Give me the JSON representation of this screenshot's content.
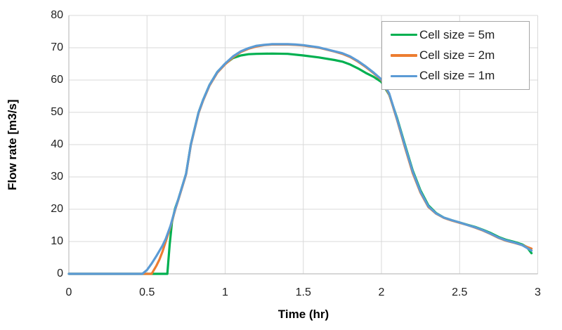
{
  "chart_data": {
    "type": "line",
    "title": "",
    "xlabel": "Time (hr)",
    "ylabel": "Flow rate [m3/s]",
    "xlim": [
      0,
      3
    ],
    "ylim": [
      0,
      80
    ],
    "x_ticks": [
      0,
      0.5,
      1,
      1.5,
      2,
      2.5,
      3
    ],
    "x_tick_labels": [
      "0",
      "0.5",
      "1",
      "1.5",
      "2",
      "2.5",
      "3"
    ],
    "y_ticks": [
      0,
      10,
      20,
      30,
      40,
      50,
      60,
      70,
      80
    ],
    "y_tick_labels": [
      "0",
      "10",
      "20",
      "30",
      "40",
      "50",
      "60",
      "70",
      "80"
    ],
    "grid": true,
    "legend_position": "top-right-inside",
    "colors": {
      "gridline": "#d9d9d9",
      "axis": "#bfbfbf",
      "tick_text": "#1f1f1f",
      "background": "#ffffff",
      "legend_border": "#a6a6a6"
    },
    "series": [
      {
        "name": "Cell size = 5m",
        "color": "#00b050",
        "points": [
          [
            0,
            0
          ],
          [
            0.2,
            0
          ],
          [
            0.4,
            0
          ],
          [
            0.5,
            0
          ],
          [
            0.56,
            0
          ],
          [
            0.6,
            0
          ],
          [
            0.63,
            0
          ],
          [
            0.645,
            9
          ],
          [
            0.66,
            16
          ],
          [
            0.68,
            20.3
          ],
          [
            0.7,
            23
          ],
          [
            0.75,
            31
          ],
          [
            0.78,
            40
          ],
          [
            0.8,
            44
          ],
          [
            0.83,
            50
          ],
          [
            0.86,
            54
          ],
          [
            0.9,
            58.5
          ],
          [
            0.95,
            62.5
          ],
          [
            1.0,
            65
          ],
          [
            1.05,
            66.8
          ],
          [
            1.1,
            67.6
          ],
          [
            1.15,
            68
          ],
          [
            1.2,
            68.1
          ],
          [
            1.3,
            68.2
          ],
          [
            1.4,
            68.1
          ],
          [
            1.5,
            67.6
          ],
          [
            1.6,
            67
          ],
          [
            1.7,
            66.2
          ],
          [
            1.75,
            65.7
          ],
          [
            1.8,
            64.8
          ],
          [
            1.85,
            63.6
          ],
          [
            1.9,
            62.2
          ],
          [
            1.95,
            61
          ],
          [
            2.0,
            59.4
          ],
          [
            2.05,
            55.4
          ],
          [
            2.1,
            48.2
          ],
          [
            2.15,
            40
          ],
          [
            2.2,
            32
          ],
          [
            2.25,
            25.8
          ],
          [
            2.3,
            21.2
          ],
          [
            2.35,
            18.8
          ],
          [
            2.4,
            17.4
          ],
          [
            2.45,
            16.6
          ],
          [
            2.5,
            15.9
          ],
          [
            2.55,
            15.2
          ],
          [
            2.6,
            14.5
          ],
          [
            2.65,
            13.6
          ],
          [
            2.7,
            12.6
          ],
          [
            2.75,
            11.4
          ],
          [
            2.8,
            10.5
          ],
          [
            2.85,
            9.9
          ],
          [
            2.9,
            9.1
          ],
          [
            2.93,
            8.3
          ],
          [
            2.96,
            6.4
          ]
        ]
      },
      {
        "name": "Cell size = 2m",
        "color": "#ed7d31",
        "points": [
          [
            0,
            0
          ],
          [
            0.2,
            0
          ],
          [
            0.4,
            0
          ],
          [
            0.5,
            0
          ],
          [
            0.53,
            0
          ],
          [
            0.56,
            2.5
          ],
          [
            0.58,
            4.5
          ],
          [
            0.6,
            7
          ],
          [
            0.62,
            10
          ],
          [
            0.65,
            14.5
          ],
          [
            0.68,
            19.8
          ],
          [
            0.7,
            22.8
          ],
          [
            0.75,
            30.8
          ],
          [
            0.78,
            39.8
          ],
          [
            0.8,
            43.8
          ],
          [
            0.83,
            49.8
          ],
          [
            0.86,
            53.8
          ],
          [
            0.9,
            58.3
          ],
          [
            0.95,
            62.3
          ],
          [
            1.0,
            64.9
          ],
          [
            1.05,
            67
          ],
          [
            1.1,
            68.7
          ],
          [
            1.15,
            69.7
          ],
          [
            1.2,
            70.4
          ],
          [
            1.25,
            70.8
          ],
          [
            1.3,
            71
          ],
          [
            1.4,
            71
          ],
          [
            1.45,
            70.9
          ],
          [
            1.5,
            70.7
          ],
          [
            1.6,
            70
          ],
          [
            1.7,
            68.8
          ],
          [
            1.75,
            68.1
          ],
          [
            1.8,
            67.1
          ],
          [
            1.85,
            65.7
          ],
          [
            1.9,
            64
          ],
          [
            1.95,
            62.1
          ],
          [
            2.0,
            60
          ],
          [
            2.05,
            55.5
          ],
          [
            2.1,
            47.6
          ],
          [
            2.15,
            39.2
          ],
          [
            2.2,
            31.2
          ],
          [
            2.25,
            25.1
          ],
          [
            2.3,
            20.7
          ],
          [
            2.35,
            18.6
          ],
          [
            2.4,
            17.3
          ],
          [
            2.45,
            16.5
          ],
          [
            2.5,
            15.8
          ],
          [
            2.55,
            15.1
          ],
          [
            2.6,
            14.3
          ],
          [
            2.65,
            13.4
          ],
          [
            2.7,
            12.3
          ],
          [
            2.75,
            11.1
          ],
          [
            2.8,
            10.2
          ],
          [
            2.85,
            9.6
          ],
          [
            2.9,
            8.9
          ],
          [
            2.96,
            7.8
          ]
        ]
      },
      {
        "name": "Cell size = 1m",
        "color": "#5b9bd5",
        "points": [
          [
            0,
            0
          ],
          [
            0.2,
            0
          ],
          [
            0.4,
            0
          ],
          [
            0.47,
            0
          ],
          [
            0.5,
            1.2
          ],
          [
            0.53,
            3.2
          ],
          [
            0.56,
            5.5
          ],
          [
            0.6,
            8.8
          ],
          [
            0.62,
            10.8
          ],
          [
            0.65,
            14.8
          ],
          [
            0.68,
            20
          ],
          [
            0.7,
            23
          ],
          [
            0.75,
            31
          ],
          [
            0.78,
            40
          ],
          [
            0.8,
            44
          ],
          [
            0.83,
            50
          ],
          [
            0.86,
            54
          ],
          [
            0.9,
            58.5
          ],
          [
            0.95,
            62.5
          ],
          [
            1.0,
            65.1
          ],
          [
            1.05,
            67.3
          ],
          [
            1.1,
            68.9
          ],
          [
            1.15,
            69.9
          ],
          [
            1.2,
            70.6
          ],
          [
            1.25,
            70.9
          ],
          [
            1.3,
            71.1
          ],
          [
            1.4,
            71.1
          ],
          [
            1.45,
            71
          ],
          [
            1.5,
            70.8
          ],
          [
            1.6,
            70.1
          ],
          [
            1.7,
            68.9
          ],
          [
            1.75,
            68.3
          ],
          [
            1.8,
            67.3
          ],
          [
            1.85,
            65.9
          ],
          [
            1.9,
            64.2
          ],
          [
            1.95,
            62.3
          ],
          [
            2.0,
            60.2
          ],
          [
            2.05,
            55.8
          ],
          [
            2.1,
            47.9
          ],
          [
            2.15,
            39.6
          ],
          [
            2.2,
            31.6
          ],
          [
            2.25,
            25.4
          ],
          [
            2.3,
            20.9
          ],
          [
            2.35,
            18.7
          ],
          [
            2.4,
            17.4
          ],
          [
            2.45,
            16.6
          ],
          [
            2.5,
            15.9
          ],
          [
            2.55,
            15.1
          ],
          [
            2.6,
            14.4
          ],
          [
            2.65,
            13.5
          ],
          [
            2.7,
            12.4
          ],
          [
            2.75,
            11.2
          ],
          [
            2.8,
            10.3
          ],
          [
            2.85,
            9.7
          ],
          [
            2.9,
            8.9
          ],
          [
            2.96,
            7.2
          ]
        ]
      }
    ]
  }
}
